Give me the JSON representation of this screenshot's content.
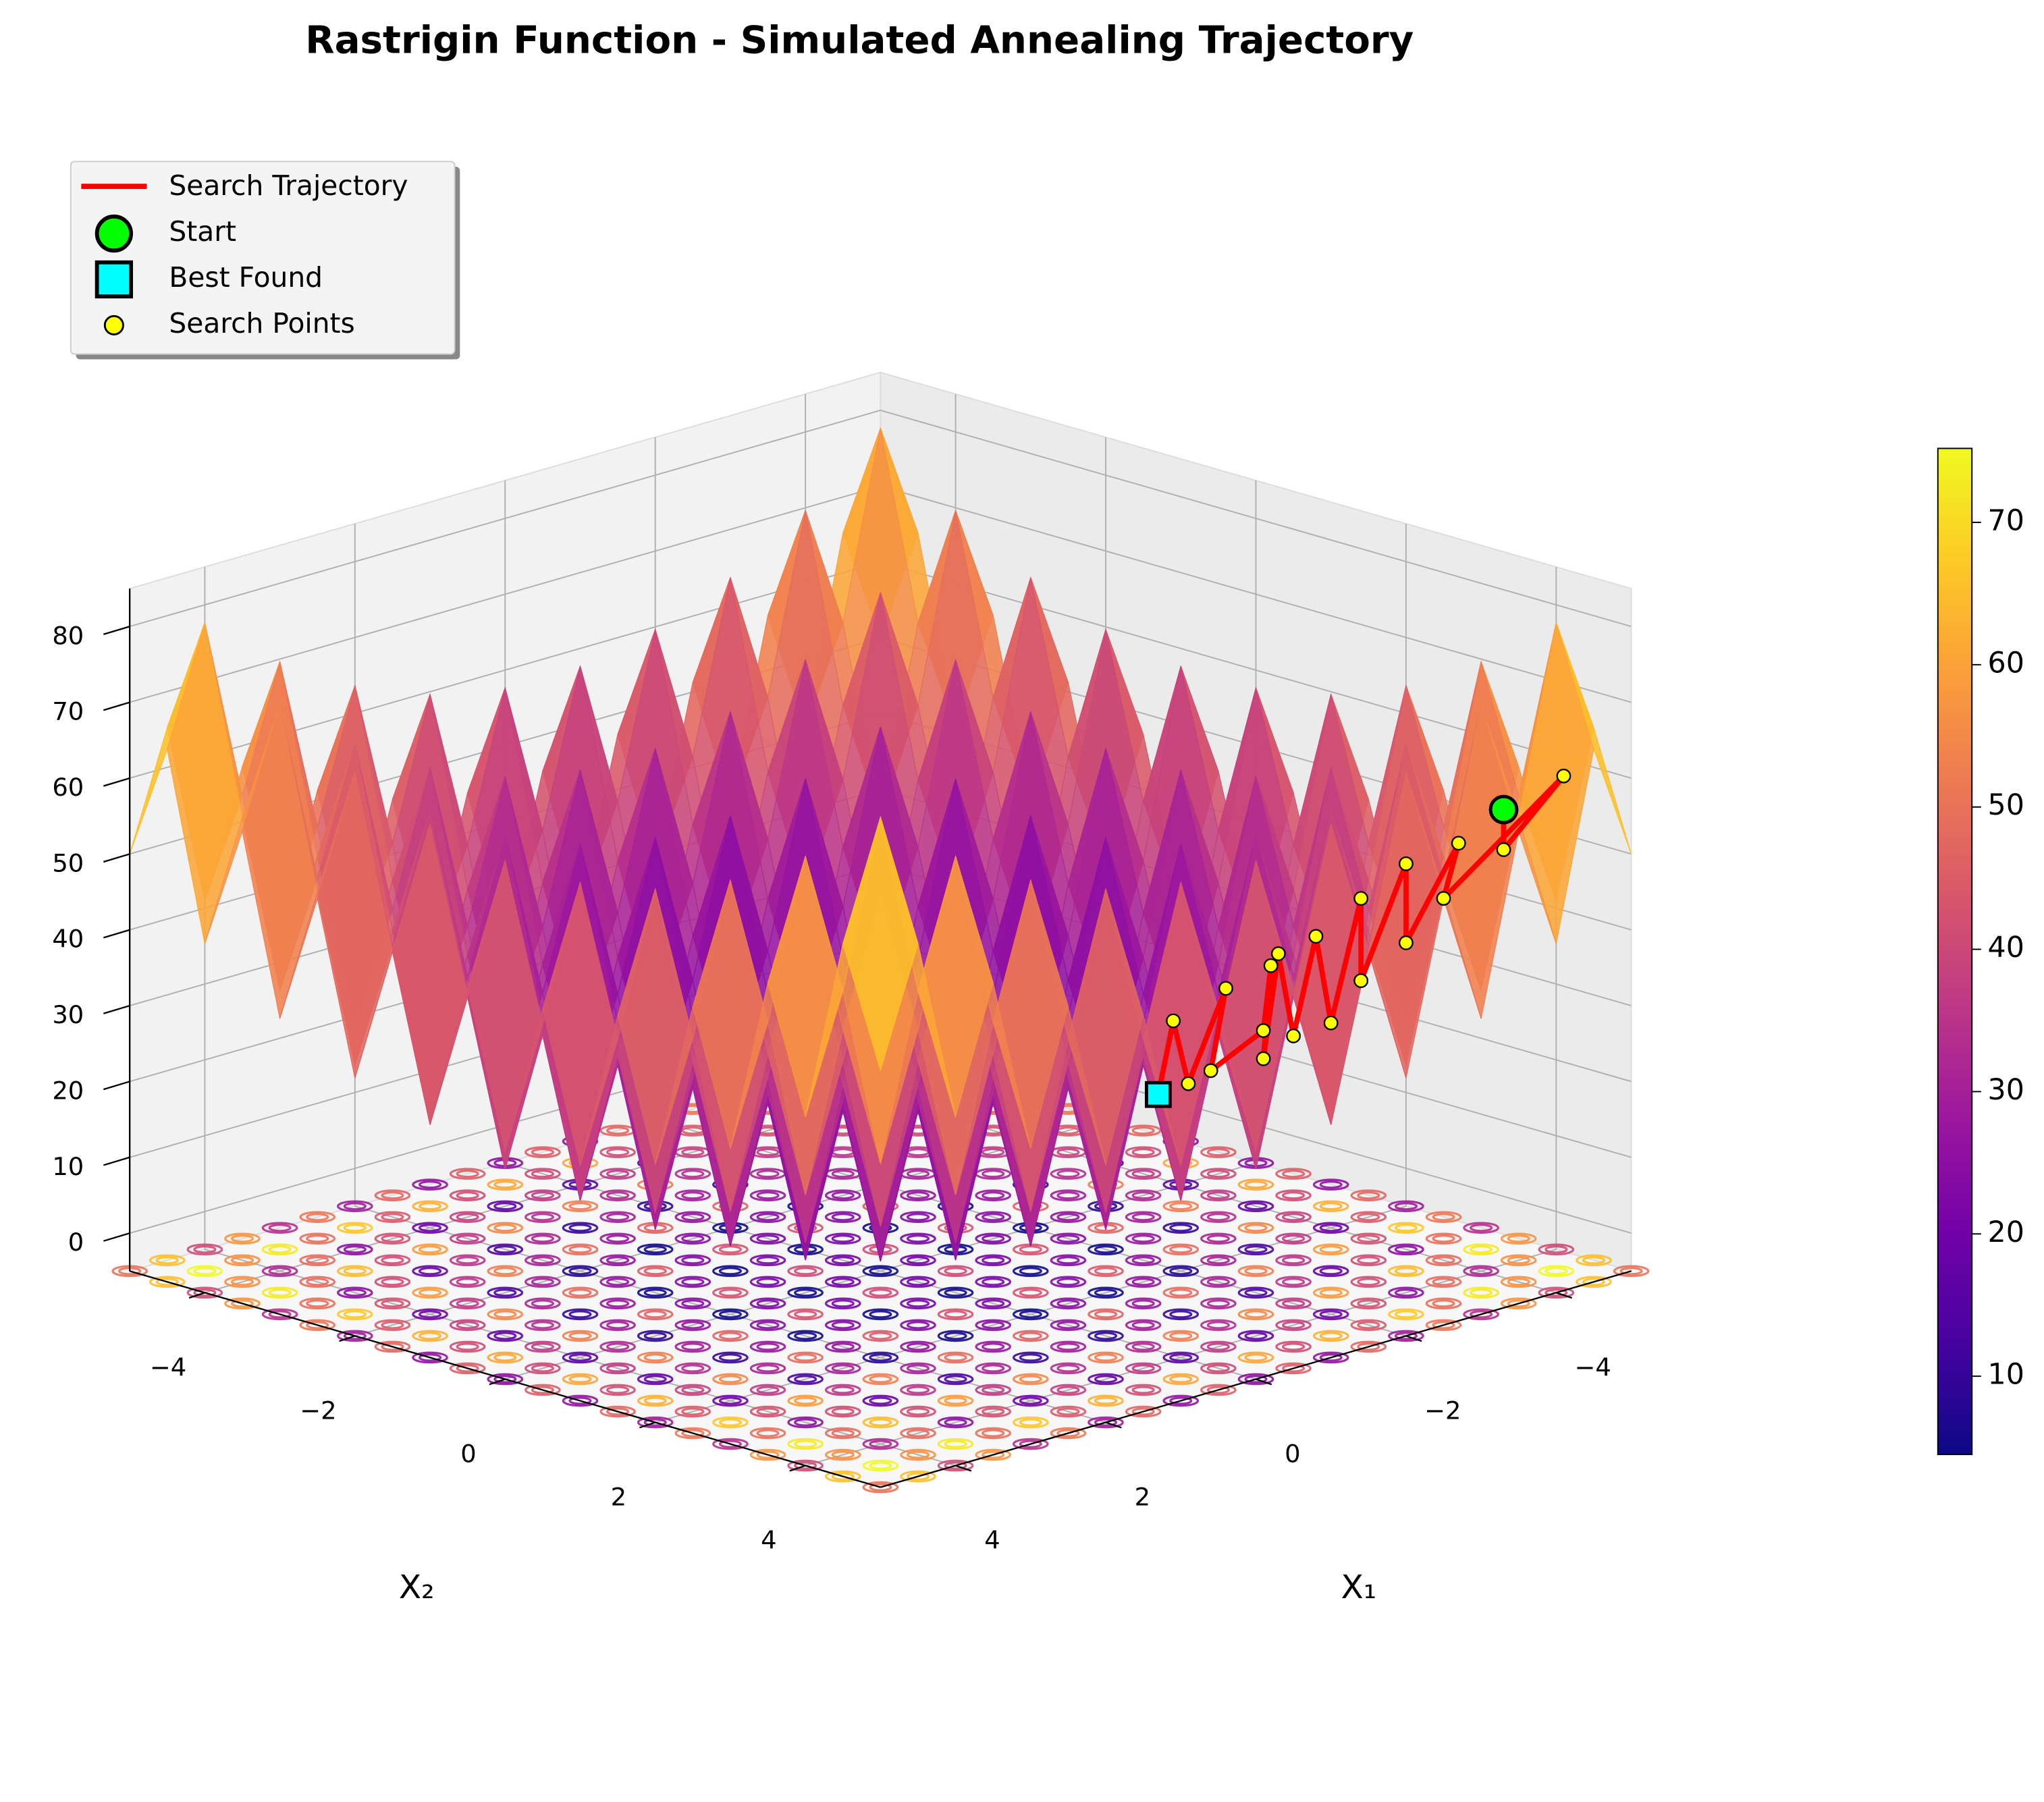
{
  "chart_data": {
    "type": "surface3d",
    "title": "Rastrigin Function - Simulated Annealing Trajectory",
    "x1_label": "X₁",
    "x2_label": "X₂",
    "grid": [
      -5,
      -4.5,
      -4,
      -3.5,
      -3,
      -2.5,
      -2,
      -1.5,
      -1,
      -0.5,
      0,
      0.5,
      1,
      1.5,
      2,
      2.5,
      3,
      3.5,
      4,
      4.5,
      5
    ],
    "z": [
      [
        50,
        65.25,
        41,
        57.25,
        34,
        51.25,
        29,
        47.25,
        26,
        45.25,
        25,
        45.25,
        26,
        47.25,
        29,
        51.25,
        34,
        57.25,
        41,
        65.25,
        50
      ],
      [
        65.25,
        80.5,
        56.25,
        72.5,
        49.25,
        66.5,
        44.25,
        62.5,
        41.25,
        60.5,
        40.25,
        60.5,
        41.25,
        62.5,
        44.25,
        66.5,
        49.25,
        72.5,
        56.25,
        80.5,
        65.25
      ],
      [
        41,
        56.25,
        32,
        48.25,
        25,
        42.25,
        20,
        38.25,
        17,
        36.25,
        16,
        36.25,
        17,
        38.25,
        20,
        42.25,
        25,
        48.25,
        32,
        56.25,
        41
      ],
      [
        57.25,
        72.5,
        48.25,
        64.5,
        41.25,
        58.5,
        36.25,
        54.5,
        33.25,
        52.5,
        32.25,
        52.5,
        33.25,
        54.5,
        36.25,
        58.5,
        41.25,
        64.5,
        48.25,
        72.5,
        57.25
      ],
      [
        34,
        49.25,
        25,
        41.25,
        18,
        35.25,
        13,
        31.25,
        10,
        29.25,
        9,
        29.25,
        10,
        31.25,
        13,
        35.25,
        18,
        41.25,
        25,
        49.25,
        34
      ],
      [
        51.25,
        66.5,
        42.25,
        58.5,
        35.25,
        52.5,
        30.25,
        48.5,
        27.25,
        46.5,
        26.25,
        46.5,
        27.25,
        48.5,
        30.25,
        52.5,
        35.25,
        58.5,
        42.25,
        66.5,
        51.25
      ],
      [
        29,
        44.25,
        20,
        36.25,
        13,
        30.25,
        8,
        26.25,
        5,
        24.25,
        4,
        24.25,
        5,
        26.25,
        8,
        30.25,
        13,
        36.25,
        20,
        44.25,
        29
      ],
      [
        47.25,
        62.5,
        38.25,
        54.5,
        31.25,
        48.5,
        26.25,
        44.5,
        23.25,
        42.5,
        22.25,
        42.5,
        23.25,
        44.5,
        26.25,
        48.5,
        31.25,
        54.5,
        38.25,
        62.5,
        47.25
      ],
      [
        26,
        41.25,
        17,
        33.25,
        10,
        27.25,
        5,
        23.25,
        2,
        21.25,
        1,
        21.25,
        2,
        23.25,
        5,
        27.25,
        10,
        33.25,
        17,
        41.25,
        26
      ],
      [
        45.25,
        60.5,
        36.25,
        52.5,
        29.25,
        46.5,
        24.25,
        42.5,
        21.25,
        40.5,
        20.25,
        40.5,
        21.25,
        42.5,
        24.25,
        46.5,
        29.25,
        52.5,
        36.25,
        60.5,
        45.25
      ],
      [
        25,
        40.25,
        16,
        32.25,
        9,
        26.25,
        4,
        22.25,
        1,
        20.25,
        0,
        20.25,
        1,
        22.25,
        4,
        26.25,
        9,
        32.25,
        16,
        40.25,
        25
      ],
      [
        45.25,
        60.5,
        36.25,
        52.5,
        29.25,
        46.5,
        24.25,
        42.5,
        21.25,
        40.5,
        20.25,
        40.5,
        21.25,
        42.5,
        24.25,
        46.5,
        29.25,
        52.5,
        36.25,
        60.5,
        45.25
      ],
      [
        26,
        41.25,
        17,
        33.25,
        10,
        27.25,
        5,
        23.25,
        2,
        21.25,
        1,
        21.25,
        2,
        23.25,
        5,
        27.25,
        10,
        33.25,
        17,
        41.25,
        26
      ],
      [
        47.25,
        62.5,
        38.25,
        54.5,
        31.25,
        48.5,
        26.25,
        44.5,
        23.25,
        42.5,
        22.25,
        42.5,
        23.25,
        44.5,
        26.25,
        48.5,
        31.25,
        54.5,
        38.25,
        62.5,
        47.25
      ],
      [
        29,
        44.25,
        20,
        36.25,
        13,
        30.25,
        8,
        26.25,
        5,
        24.25,
        4,
        24.25,
        5,
        26.25,
        8,
        30.25,
        13,
        36.25,
        20,
        44.25,
        29
      ],
      [
        51.25,
        66.5,
        42.25,
        58.5,
        35.25,
        52.5,
        30.25,
        48.5,
        27.25,
        46.5,
        26.25,
        46.5,
        27.25,
        48.5,
        30.25,
        52.5,
        35.25,
        58.5,
        42.25,
        66.5,
        51.25
      ],
      [
        34,
        49.25,
        25,
        41.25,
        18,
        35.25,
        13,
        31.25,
        10,
        29.25,
        9,
        29.25,
        10,
        31.25,
        13,
        35.25,
        18,
        41.25,
        25,
        49.25,
        34
      ],
      [
        57.25,
        72.5,
        48.25,
        64.5,
        41.25,
        58.5,
        36.25,
        54.5,
        33.25,
        52.5,
        32.25,
        52.5,
        33.25,
        54.5,
        36.25,
        58.5,
        41.25,
        64.5,
        48.25,
        72.5,
        57.25
      ],
      [
        41,
        56.25,
        32,
        48.25,
        25,
        42.25,
        20,
        38.25,
        17,
        36.25,
        16,
        36.25,
        17,
        38.25,
        20,
        42.25,
        25,
        48.25,
        32,
        56.25,
        41
      ],
      [
        65.25,
        80.5,
        56.25,
        72.5,
        49.25,
        66.5,
        44.25,
        62.5,
        41.25,
        60.5,
        40.25,
        60.5,
        41.25,
        62.5,
        44.25,
        66.5,
        49.25,
        72.5,
        56.25,
        80.5,
        65.25
      ],
      [
        50,
        65.25,
        41,
        57.25,
        34,
        51.25,
        29,
        47.25,
        26,
        45.25,
        25,
        45.25,
        26,
        47.25,
        29,
        51.25,
        34,
        57.25,
        41,
        65.25,
        50
      ]
    ],
    "colormap": "plasma",
    "xlim": [
      -5,
      5
    ],
    "ylim": [
      -5,
      5
    ],
    "zlim": [
      -5,
      85
    ],
    "x1ticks": [
      {
        "value": -4,
        "label": "−4"
      },
      {
        "value": -2,
        "label": "−2"
      },
      0,
      2,
      4
    ],
    "x2ticks": [
      {
        "value": -4,
        "label": "−4"
      },
      {
        "value": -2,
        "label": "−2"
      },
      0,
      2,
      4
    ],
    "zticks": [
      0,
      10,
      20,
      30,
      40,
      50,
      60,
      70,
      80
    ],
    "colorbar": {
      "lim": [
        4.5,
        75.2
      ],
      "ticks": [
        10,
        20,
        30,
        40,
        50,
        60,
        70
      ]
    },
    "trajectory": {
      "name": "Search Trajectory",
      "color": "#ff0000",
      "x1": [
        -4.3,
        -3.9,
        -4.6,
        -3.6,
        -4.1,
        -3.2,
        -3.8,
        -2.9,
        -3.4,
        -2.6,
        -3.1,
        -2.4,
        -2.8,
        -2.2,
        -3.0,
        -2.5,
        -2.1,
        -2.7,
        -2.0,
        -2.3,
        -1.9
      ],
      "x2": [
        4.0,
        4.4,
        4.5,
        3.9,
        3.6,
        3.8,
        3.2,
        3.5,
        3.0,
        3.4,
        2.7,
        3.1,
        2.5,
        2.9,
        2.2,
        2.6,
        2.3,
        1.9,
        2.1,
        1.6,
        1.8
      ],
      "z": [
        55,
        52,
        60,
        45,
        50,
        40,
        47,
        35,
        43,
        30,
        38,
        28,
        36,
        25,
        33,
        27,
        22,
        30,
        20,
        26,
        18
      ]
    },
    "search_points": {
      "name": "Search Points",
      "color": "#ffff00"
    },
    "start": {
      "name": "Start",
      "color": "#00ff00",
      "x1": -4.3,
      "x2": 4.0,
      "z": 55
    },
    "best": {
      "name": "Best Found",
      "color": "#00ffff",
      "x1": -1.9,
      "x2": 1.8,
      "z": 18
    }
  }
}
